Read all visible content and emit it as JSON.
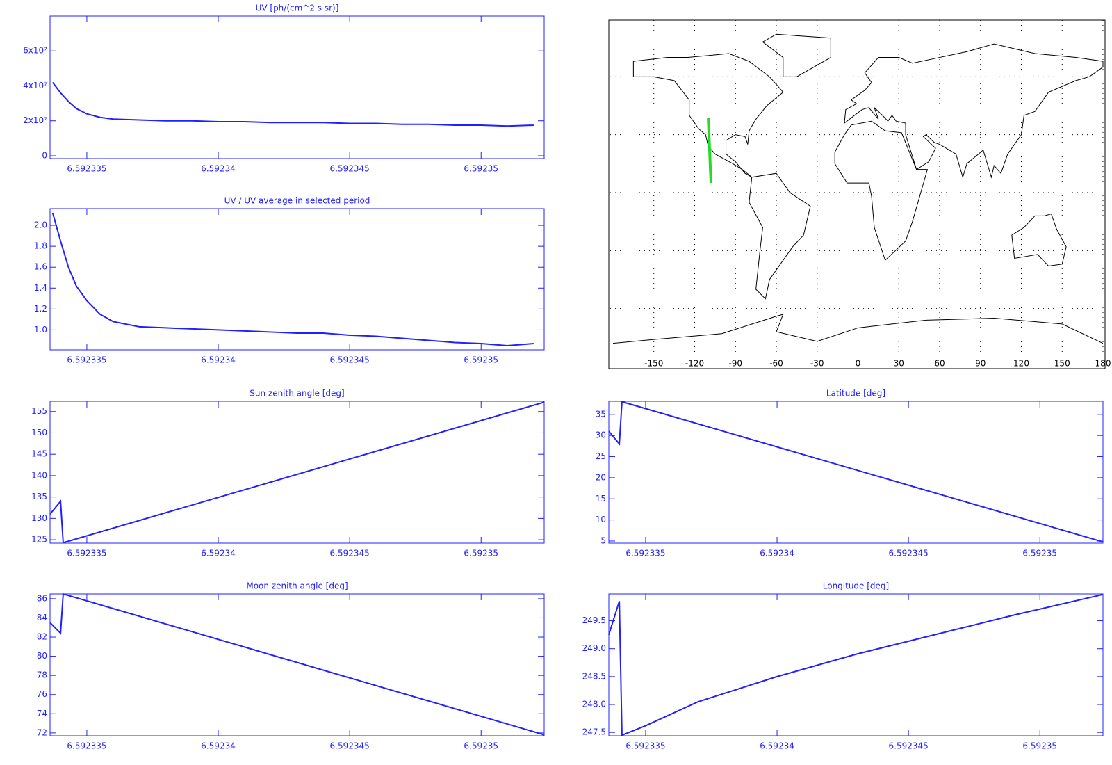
{
  "chart_data": [
    {
      "type": "line",
      "title": "UV [ph/(cm^2 s sr)]",
      "color": "#2020ff",
      "x": [
        6.5923337,
        6.592334,
        6.5923343,
        6.5923346,
        6.592335,
        6.5923355,
        6.592336,
        6.592337,
        6.592338,
        6.592339,
        6.59234,
        6.592341,
        6.592342,
        6.592343,
        6.592344,
        6.592345,
        6.592346,
        6.592347,
        6.592348,
        6.592349,
        6.59235,
        6.592351,
        6.592352
      ],
      "values": [
        42000000,
        36000000,
        31000000,
        27000000,
        24000000,
        22000000,
        21000000,
        20500000,
        20000000,
        20000000,
        19500000,
        19500000,
        19000000,
        19000000,
        19000000,
        18500000,
        18500000,
        18000000,
        18000000,
        17500000,
        17500000,
        17000000,
        17500000
      ],
      "xlim": [
        6.5923336,
        6.5923524
      ],
      "xticks": [
        6.592335,
        6.59234,
        6.592345,
        6.59235
      ],
      "ylim": [
        -1600000,
        80000000
      ],
      "yticks": [
        0,
        {
          "value": 20000000,
          "label": "2x10⁷"
        },
        {
          "value": 40000000,
          "label": "4x10⁷"
        },
        {
          "value": 60000000,
          "label": "6x10⁷"
        }
      ]
    },
    {
      "type": "line",
      "title": "UV / UV average in selected period",
      "color": "#2020ff",
      "x": [
        6.5923337,
        6.592334,
        6.5923343,
        6.5923346,
        6.592335,
        6.5923355,
        6.592336,
        6.592337,
        6.592338,
        6.592339,
        6.59234,
        6.592341,
        6.592342,
        6.592343,
        6.592344,
        6.592345,
        6.592346,
        6.592347,
        6.592348,
        6.592349,
        6.59235,
        6.592351,
        6.592352
      ],
      "values": [
        2.12,
        1.85,
        1.6,
        1.42,
        1.28,
        1.15,
        1.08,
        1.03,
        1.02,
        1.01,
        1.0,
        0.99,
        0.98,
        0.97,
        0.97,
        0.95,
        0.94,
        0.92,
        0.9,
        0.88,
        0.87,
        0.85,
        0.87
      ],
      "xlim": [
        6.5923336,
        6.5923524
      ],
      "xticks": [
        6.592335,
        6.59234,
        6.592345,
        6.59235
      ],
      "ylim": [
        0.81,
        2.16
      ],
      "yticks": [
        {
          "value": 1,
          "label": "1.0"
        },
        1.2,
        1.4,
        1.6,
        1.8,
        {
          "value": 2,
          "label": "2.0"
        }
      ]
    },
    {
      "type": "map",
      "xlim": [
        -180,
        180
      ],
      "ylim": [
        -90,
        90
      ],
      "xticks": [
        -150,
        -120,
        -90,
        -60,
        -30,
        0,
        30,
        60,
        90,
        120,
        150,
        180
      ],
      "yticks": [
        -60,
        -30,
        0,
        30,
        60
      ],
      "grid": true,
      "track": {
        "color": "#22dd22",
        "lon": [
          -110,
          -109.5,
          -109,
          -108.5,
          -108
        ],
        "lat": [
          38.5,
          30,
          22,
          13,
          5
        ]
      }
    },
    {
      "type": "line",
      "title": "Sun zenith angle [deg]",
      "color": "#2020ff",
      "x": [
        6.5923336,
        6.592334,
        6.5923341,
        6.5923524
      ],
      "values": [
        131,
        134,
        124.3,
        157.2
      ],
      "xlim": [
        6.5923336,
        6.5923524
      ],
      "xticks": [
        6.592335,
        6.59234,
        6.592345,
        6.59235
      ],
      "ylim": [
        124.2,
        157.4
      ],
      "yticks": [
        125,
        130,
        135,
        140,
        145,
        150,
        155
      ]
    },
    {
      "type": "line",
      "title": "Latitude [deg]",
      "color": "#2020ff",
      "x": [
        6.5923336,
        6.592334,
        6.5923341,
        6.5923524
      ],
      "values": [
        31,
        28,
        38,
        4.8
      ],
      "xlim": [
        6.5923336,
        6.5923524
      ],
      "xticks": [
        6.592335,
        6.59234,
        6.592345,
        6.59235
      ],
      "ylim": [
        4.5,
        38.1
      ],
      "yticks": [
        5,
        10,
        15,
        20,
        25,
        30,
        35
      ]
    },
    {
      "type": "line",
      "title": "Moon zenith angle [deg]",
      "color": "#2020ff",
      "x": [
        6.5923336,
        6.592334,
        6.5923341,
        6.5923524
      ],
      "values": [
        83.5,
        82.4,
        86.5,
        71.8
      ],
      "xlim": [
        6.5923336,
        6.5923524
      ],
      "xticks": [
        6.592335,
        6.59234,
        6.592345,
        6.59235
      ],
      "ylim": [
        71.7,
        86.5
      ],
      "yticks": [
        72,
        74,
        76,
        78,
        80,
        82,
        84,
        86
      ]
    },
    {
      "type": "line",
      "title": "Longitude [deg]",
      "color": "#2020ff",
      "x": [
        6.5923336,
        6.592334,
        6.5923341,
        6.592335,
        6.592337,
        6.59234,
        6.592343,
        6.592346,
        6.592349,
        6.5923524
      ],
      "values": [
        249.25,
        249.85,
        247.45,
        247.62,
        248.05,
        248.5,
        248.9,
        249.25,
        249.6,
        249.97
      ],
      "xlim": [
        6.5923336,
        6.5923524
      ],
      "xticks": [
        6.592335,
        6.59234,
        6.592345,
        6.59235
      ],
      "ylim": [
        247.44,
        249.98
      ],
      "yticks": [
        247.5,
        {
          "value": 248,
          "label": "248.0"
        },
        248.5,
        {
          "value": 249,
          "label": "249.0"
        },
        249.5
      ]
    }
  ]
}
